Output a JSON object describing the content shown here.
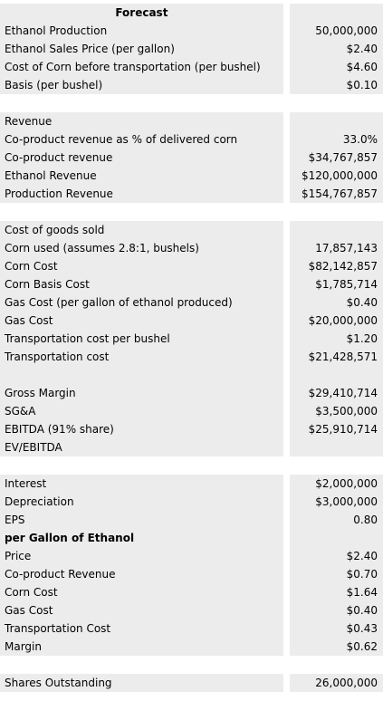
{
  "rows": [
    {
      "label": "Forecast",
      "value": "",
      "kind": "header",
      "shaded": true
    },
    {
      "label": "Ethanol Production",
      "value": "50,000,000",
      "shaded": true
    },
    {
      "label": "Ethanol Sales Price (per gallon)",
      "value": "$2.40",
      "shaded": true
    },
    {
      "label": "Cost of Corn before transportation (per bushel)",
      "value": "$4.60",
      "shaded": true
    },
    {
      "label": "Basis (per bushel)",
      "value": "$0.10",
      "shaded": true
    },
    {
      "label": "",
      "value": "",
      "shaded": false
    },
    {
      "label": "Revenue",
      "value": "",
      "shaded": true
    },
    {
      "label": "Co-product revenue as % of delivered corn",
      "value": "33.0%",
      "shaded": true
    },
    {
      "label": "Co-product revenue",
      "value": "$34,767,857",
      "shaded": true
    },
    {
      "label": "Ethanol Revenue",
      "value": "$120,000,000",
      "shaded": true
    },
    {
      "label": "Production Revenue",
      "value": "$154,767,857",
      "shaded": true
    },
    {
      "label": "",
      "value": "",
      "shaded": false
    },
    {
      "label": "Cost of goods sold",
      "value": "",
      "shaded": true
    },
    {
      "label": "Corn used (assumes 2.8:1, bushels)",
      "value": "17,857,143",
      "shaded": true
    },
    {
      "label": "Corn Cost",
      "value": "$82,142,857",
      "shaded": true
    },
    {
      "label": "Corn Basis Cost",
      "value": "$1,785,714",
      "shaded": true
    },
    {
      "label": "Gas Cost (per gallon of ethanol produced)",
      "value": "$0.40",
      "shaded": true
    },
    {
      "label": "Gas Cost",
      "value": "$20,000,000",
      "shaded": true
    },
    {
      "label": "Transportation cost per bushel",
      "value": "$1.20",
      "shaded": true
    },
    {
      "label": "Transportation cost",
      "value": "$21,428,571",
      "shaded": true
    },
    {
      "label": "",
      "value": "",
      "shaded": true
    },
    {
      "label": "Gross Margin",
      "value": "$29,410,714",
      "shaded": true
    },
    {
      "label": "SG&A",
      "value": "$3,500,000",
      "shaded": true
    },
    {
      "label": "EBITDA (91% share)",
      "value": "$25,910,714",
      "shaded": true
    },
    {
      "label": "EV/EBITDA",
      "value": "",
      "shaded": true
    },
    {
      "label": "",
      "value": "",
      "shaded": false
    },
    {
      "label": "Interest",
      "value": "$2,000,000",
      "shaded": true
    },
    {
      "label": "Depreciation",
      "value": "$3,000,000",
      "shaded": true
    },
    {
      "label": "EPS",
      "value": "0.80",
      "shaded": true
    },
    {
      "label": "per Gallon of Ethanol",
      "value": "",
      "kind": "bold",
      "shaded": true
    },
    {
      "label": "Price",
      "value": "$2.40",
      "shaded": true
    },
    {
      "label": "Co-product Revenue",
      "value": "$0.70",
      "shaded": true
    },
    {
      "label": "Corn Cost",
      "value": "$1.64",
      "shaded": true
    },
    {
      "label": "Gas Cost",
      "value": "$0.40",
      "shaded": true
    },
    {
      "label": "Transportation Cost",
      "value": "$0.43",
      "shaded": true
    },
    {
      "label": "Margin",
      "value": "$0.62",
      "shaded": true
    },
    {
      "label": "",
      "value": "",
      "shaded": false
    },
    {
      "label": "Shares Outstanding",
      "value": "26,000,000",
      "shaded": true
    }
  ]
}
